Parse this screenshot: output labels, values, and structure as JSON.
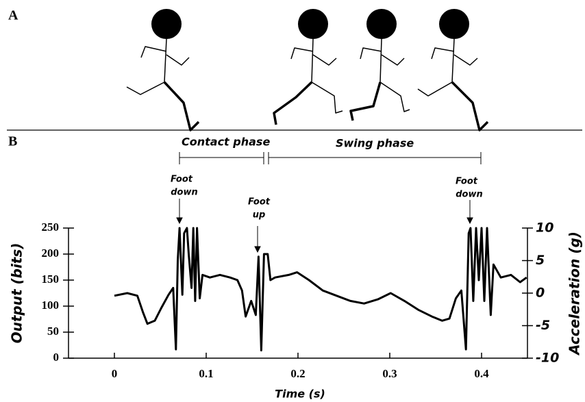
{
  "chart_data": {
    "type": "line",
    "panel_labels": [
      "A",
      "B"
    ],
    "phases": [
      "Contact phase",
      "Swing phase"
    ],
    "annotations": [
      [
        "Foot",
        "down"
      ],
      [
        "Foot",
        "up"
      ],
      [
        "Foot",
        "down"
      ]
    ],
    "xlabel": "Time (s)",
    "ylabel": "Output (bits)",
    "y2label": "Acceleration (g)",
    "xlim": [
      -0.05,
      0.45
    ],
    "xticks": [
      0,
      0.1,
      0.2,
      0.3,
      0.4
    ],
    "ylim": [
      0,
      250
    ],
    "yticks": [
      0,
      50,
      100,
      150,
      200,
      250
    ],
    "y2lim": [
      -10,
      10
    ],
    "y2ticks": [
      -10,
      -5,
      0,
      5,
      10
    ],
    "color": "#000000",
    "x": [
      0.0,
      0.014,
      0.025,
      0.031,
      0.036,
      0.044,
      0.051,
      0.059,
      0.064,
      0.067,
      0.069,
      0.071,
      0.074,
      0.076,
      0.079,
      0.081,
      0.084,
      0.086,
      0.088,
      0.09,
      0.093,
      0.096,
      0.104,
      0.115,
      0.126,
      0.134,
      0.139,
      0.143,
      0.149,
      0.154,
      0.157,
      0.16,
      0.163,
      0.167,
      0.17,
      0.175,
      0.19,
      0.199,
      0.212,
      0.227,
      0.242,
      0.257,
      0.272,
      0.287,
      0.301,
      0.316,
      0.331,
      0.346,
      0.357,
      0.365,
      0.372,
      0.378,
      0.383,
      0.386,
      0.388,
      0.391,
      0.394,
      0.397,
      0.4,
      0.403,
      0.406,
      0.41,
      0.413,
      0.421,
      0.432,
      0.442,
      0.449
    ],
    "values": [
      120,
      125,
      120,
      89,
      66,
      72,
      96,
      122,
      135,
      17,
      188,
      250,
      122,
      240,
      250,
      200,
      135,
      250,
      110,
      250,
      115,
      160,
      155,
      160,
      155,
      150,
      130,
      80,
      110,
      83,
      195,
      15,
      200,
      200,
      150,
      155,
      160,
      165,
      150,
      130,
      120,
      110,
      105,
      113,
      125,
      110,
      93,
      80,
      72,
      76,
      115,
      130,
      17,
      240,
      250,
      110,
      250,
      150,
      250,
      110,
      250,
      83,
      180,
      155,
      160,
      146,
      155
    ]
  }
}
